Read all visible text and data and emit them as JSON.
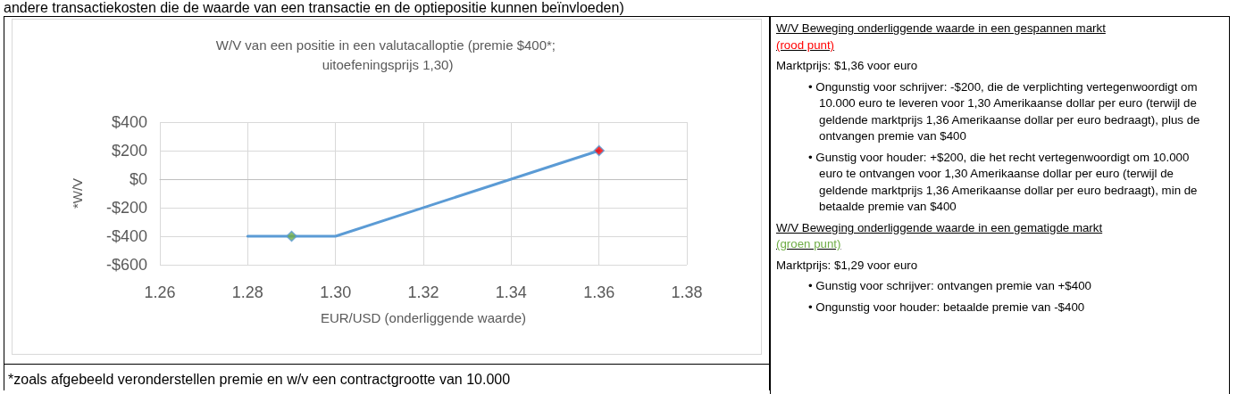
{
  "chart_data": [
    {
      "type": "line",
      "title": "W/V van een positie in een valutacalloptie (premie $400*; uitoefeningsprijs 1,30)",
      "xlabel": "EUR/USD (onderliggende waarde)",
      "ylabel": "*W/V",
      "annotations": [
        "andere transactiekosten die de waarde van een transactie en de optiepositie kunnen beïnvloeden)",
        "*zoals afgebeeld veronderstellen premie en w/v een contractgrootte van 10.000"
      ],
      "series": [
        {
          "type": "line",
          "color": "#5b9bd5",
          "x": [
            1.28,
            1.3,
            1.36
          ],
          "values": [
            -400,
            -400,
            200
          ],
          "marker": "none"
        },
        {
          "type": "scatter",
          "color": "#ff0000",
          "x": [
            1.36
          ],
          "values": [
            200
          ],
          "marker": "diamond"
        },
        {
          "type": "scatter",
          "color": "#70ad47",
          "x": [
            1.29
          ],
          "values": [
            -400
          ],
          "marker": "diamond"
        }
      ],
      "xlim": [
        1.26,
        1.38
      ],
      "xticks": [
        {
          "value": 1.26,
          "label": "1.26"
        },
        {
          "value": 1.28,
          "label": "1.28"
        },
        {
          "value": 1.3,
          "label": "1.30"
        },
        {
          "value": 1.32,
          "label": "1.32"
        },
        {
          "value": 1.34,
          "label": "1.34"
        },
        {
          "value": 1.36,
          "label": "1.36"
        },
        {
          "value": 1.38,
          "label": "1.38"
        }
      ],
      "ylim": [
        -600,
        400
      ],
      "yticks": [
        {
          "value": -600,
          "label": "-$600"
        },
        {
          "value": -400,
          "label": "-$400"
        },
        {
          "value": -200,
          "label": "-$200"
        },
        {
          "value": 0,
          "label": "$0"
        },
        {
          "value": 200,
          "label": "$200"
        },
        {
          "value": 400,
          "label": "$400"
        }
      ],
      "grid": true
    },
    {
      "type": "other",
      "annotations": [
        "W/V Beweging onderliggende waarde in een gespannen markt",
        "(rood punt)",
        "Marktprijs: $1,36 voor euro",
        "• Ongunstig voor schrijver: -$200, die de verplichting vertegenwoordigt om 10.000 euro te leveren voor 1,30 Amerikaanse dollar per euro (terwijl de geldende marktprijs 1,36 Amerikaanse dollar per euro bedraagt), plus de ontvangen premie van $400",
        "• Gunstig voor houder: +$200, die het recht vertegenwoordigt om 10.000 euro te ontvangen voor 1,30 Amerikaanse dollar per euro (terwijl de geldende marktprijs 1,36 Amerikaanse dollar per euro bedraagt), min de betaalde premie van $400",
        "W/V Beweging onderliggende waarde in een gematigde markt",
        "(groen punt)",
        "Marktprijs: $1,29 voor euro",
        "• Gunstig voor schrijver: ontvangen premie van +$400",
        "• Ongunstig voor houder: betaalde premie van -$400"
      ]
    }
  ]
}
